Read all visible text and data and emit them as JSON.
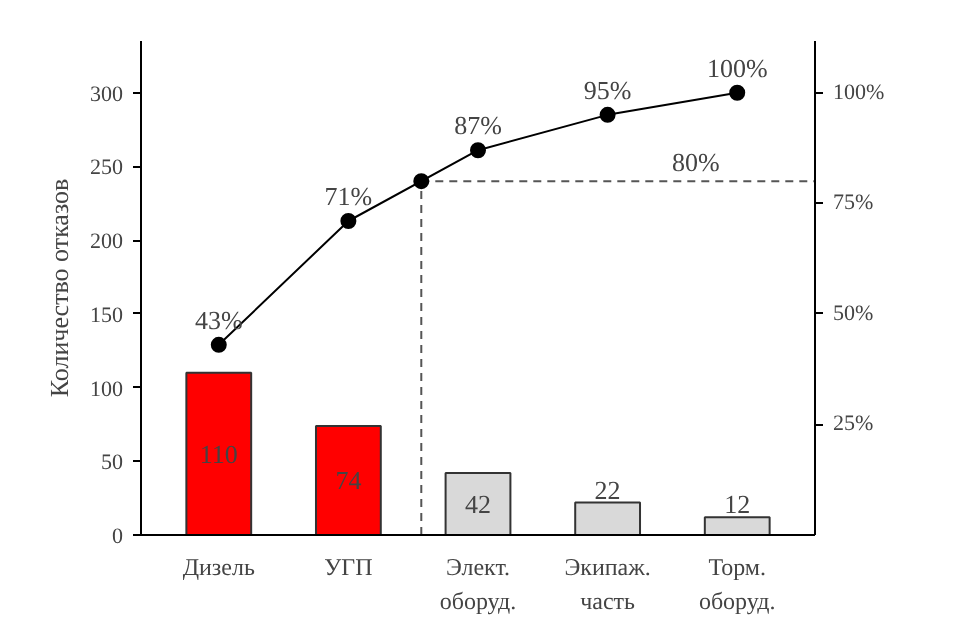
{
  "chart_data": {
    "type": "bar",
    "categories": [
      "Дизель",
      "УГП",
      "Элект. оборуд.",
      "Экипаж. часть",
      "Торм. оборуд."
    ],
    "ylabel": "Количество отказов",
    "ylim": [
      0,
      335
    ],
    "yticks": [
      0,
      50,
      100,
      150,
      200,
      250,
      300
    ],
    "y2lim": [
      0,
      111.7
    ],
    "y2ticks": [
      {
        "value": 25,
        "label": "25%"
      },
      {
        "value": 50,
        "label": "50%"
      },
      {
        "value": 75,
        "label": "75%"
      },
      {
        "value": 100,
        "label": "100%"
      }
    ],
    "data_labels": true,
    "grid": false,
    "series": [
      {
        "values": [
          110,
          74,
          42,
          22,
          12
        ],
        "colors": [
          "#ff0000",
          "#ff0000",
          "#d9d9d9",
          "#d9d9d9",
          "#d9d9d9"
        ]
      },
      {
        "type": "line",
        "axis": "y2",
        "values": [
          43,
          71,
          87,
          95,
          100
        ],
        "value_labels": [
          "43%",
          "71%",
          "87%",
          "95%",
          "100%"
        ],
        "color": "#000000",
        "marker": "circle"
      }
    ],
    "ref_lines": [
      {
        "axis": "y2",
        "value": 80,
        "label": "80%",
        "line_style": "dashed"
      }
    ]
  }
}
